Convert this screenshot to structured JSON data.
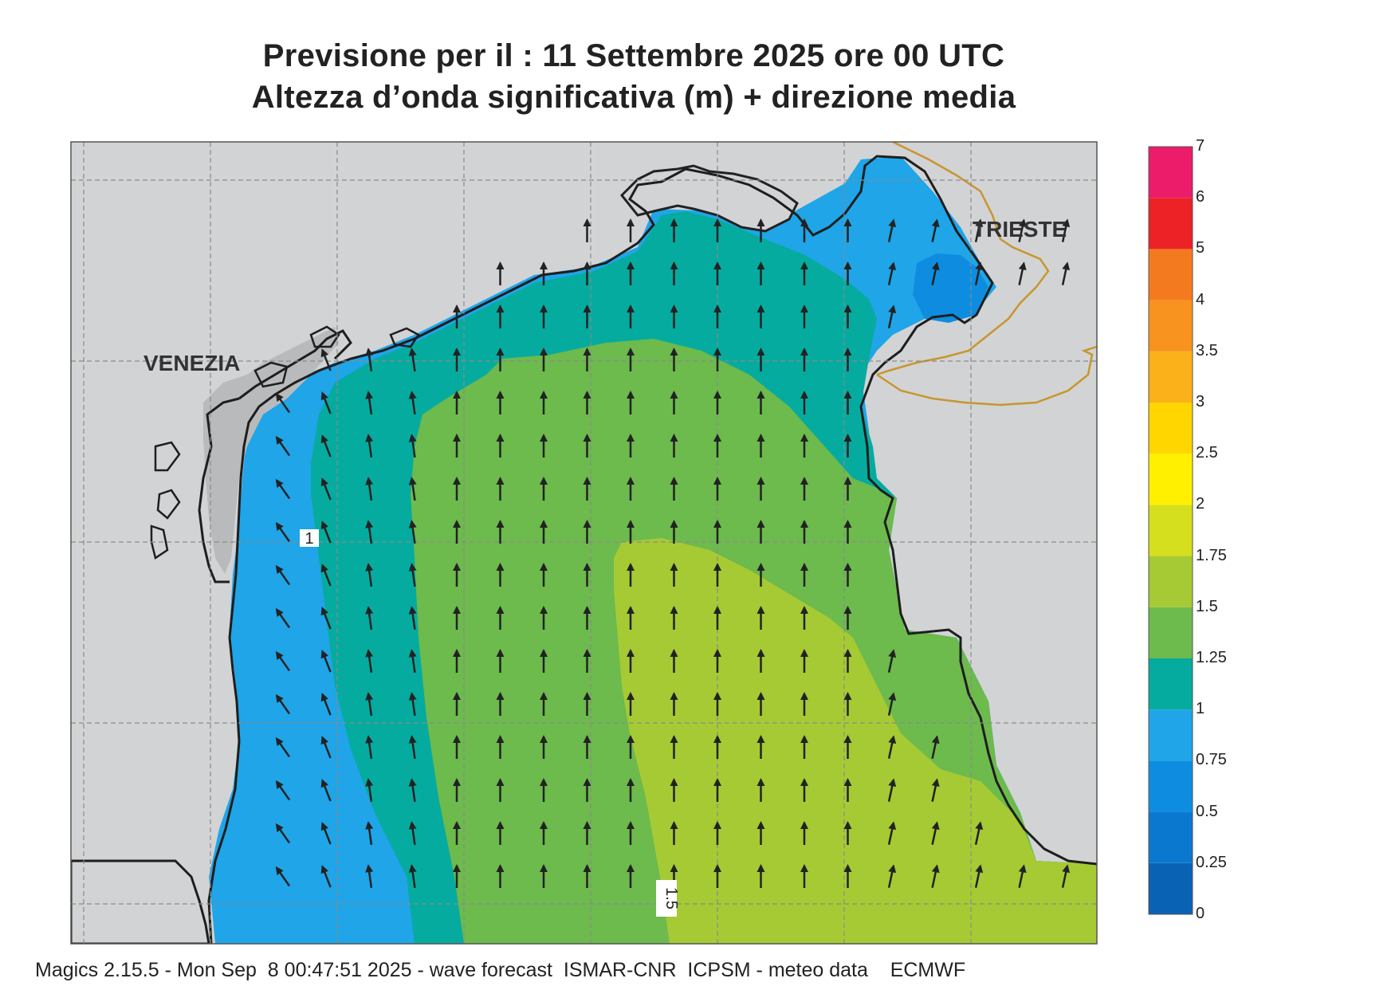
{
  "title": {
    "line1": "Previsione per il  :  11 Settembre 2025   ore 00 UTC",
    "line2": "Altezza d’onda significativa (m) + direzione media"
  },
  "places": {
    "venezia": "VENEZIA",
    "trieste": "TRIESTE"
  },
  "contour_labels": [
    "1",
    "1.5"
  ],
  "legend": {
    "ticks": [
      "0",
      "0.25",
      "0.5",
      "0.75",
      "1",
      "1.25",
      "1.5",
      "1.75",
      "2",
      "2.5",
      "3",
      "3.5",
      "4",
      "5",
      "6",
      "7"
    ],
    "colors": [
      "#0a62b5",
      "#0b78cf",
      "#0e8de0",
      "#1fa5e8",
      "#06ab9f",
      "#6dba4d",
      "#a6ca34",
      "#d6df1e",
      "#fff000",
      "#ffd600",
      "#fbb11a",
      "#f7931e",
      "#f47a20",
      "#ec2227",
      "#ec1c6a"
    ]
  },
  "footer": "Magics 2.15.5 - Mon Sep  8 00:47:51 2025 - wave forecast  ISMAR-CNR  ICPSM - meteo data    ECMWF",
  "colors": {
    "land": "#d2d3d5",
    "lagoon_land": "#b9babc",
    "border": "#c8962e",
    "arrow": "#222222"
  }
}
